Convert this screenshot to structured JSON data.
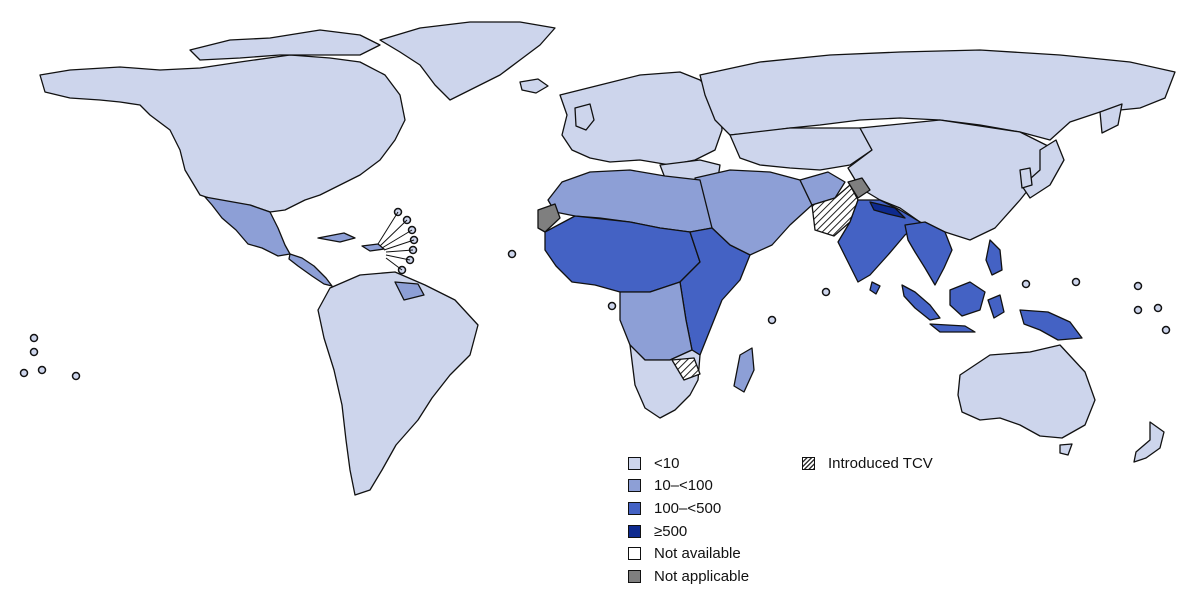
{
  "legend": {
    "categories": [
      {
        "label": "<10",
        "color": "#cdd5ec"
      },
      {
        "label": "10–<100",
        "color": "#8d9fd6"
      },
      {
        "label": "100–<500",
        "color": "#4462c4"
      },
      {
        "label": "≥500",
        "color": "#0e2a8f"
      },
      {
        "label": "Not available",
        "color": "#ffffff"
      },
      {
        "label": "Not applicable",
        "color": "#7f7f7f"
      }
    ],
    "pattern_label": "Introduced TCV"
  },
  "colors": {
    "lt10": "#cdd5ec",
    "10_100": "#8d9fd6",
    "100_500": "#4462c4",
    "ge500": "#0e2a8f",
    "not_available": "#ffffff",
    "not_applicable": "#7f7f7f",
    "outline": "#111111"
  }
}
